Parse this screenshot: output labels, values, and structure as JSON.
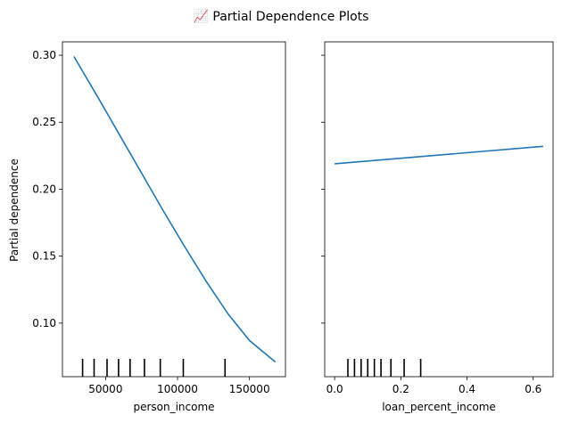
{
  "chart_data": {
    "type": "line",
    "title": "📈 Partial Dependence Plots",
    "shared_ylabel": "Partial dependence",
    "ylim": [
      0.06,
      0.31
    ],
    "yticks": [
      0.1,
      0.15,
      0.2,
      0.25,
      0.3
    ],
    "ytick_labels": [
      "0.10",
      "0.15",
      "0.20",
      "0.25",
      "0.30"
    ],
    "line_color": "#1f77b4",
    "grid": false,
    "panels": [
      {
        "xlabel": "person_income",
        "xlim": [
          20000,
          175000
        ],
        "xticks": [
          50000,
          100000,
          150000
        ],
        "xtick_labels": [
          "50000",
          "100000",
          "150000"
        ],
        "series": [
          {
            "x": [
              28000,
              45000,
              60000,
              75000,
              90000,
              105000,
              120000,
              135000,
              150000,
              168000
            ],
            "y": [
              0.299,
              0.268,
              0.24,
              0.212,
              0.184,
              0.157,
              0.131,
              0.107,
              0.087,
              0.071
            ]
          }
        ],
        "deciles": [
          34000,
          42000,
          51000,
          59000,
          67000,
          77000,
          88000,
          104000,
          133000
        ]
      },
      {
        "xlabel": "loan_percent_income",
        "xlim": [
          -0.03,
          0.66
        ],
        "xticks": [
          0.0,
          0.2,
          0.4,
          0.6
        ],
        "xtick_labels": [
          "0.0",
          "0.2",
          "0.4",
          "0.6"
        ],
        "series": [
          {
            "x": [
              0.0,
              0.63
            ],
            "y": [
              0.219,
              0.232
            ]
          }
        ],
        "deciles": [
          0.04,
          0.06,
          0.08,
          0.1,
          0.12,
          0.14,
          0.17,
          0.21,
          0.26
        ]
      }
    ]
  }
}
